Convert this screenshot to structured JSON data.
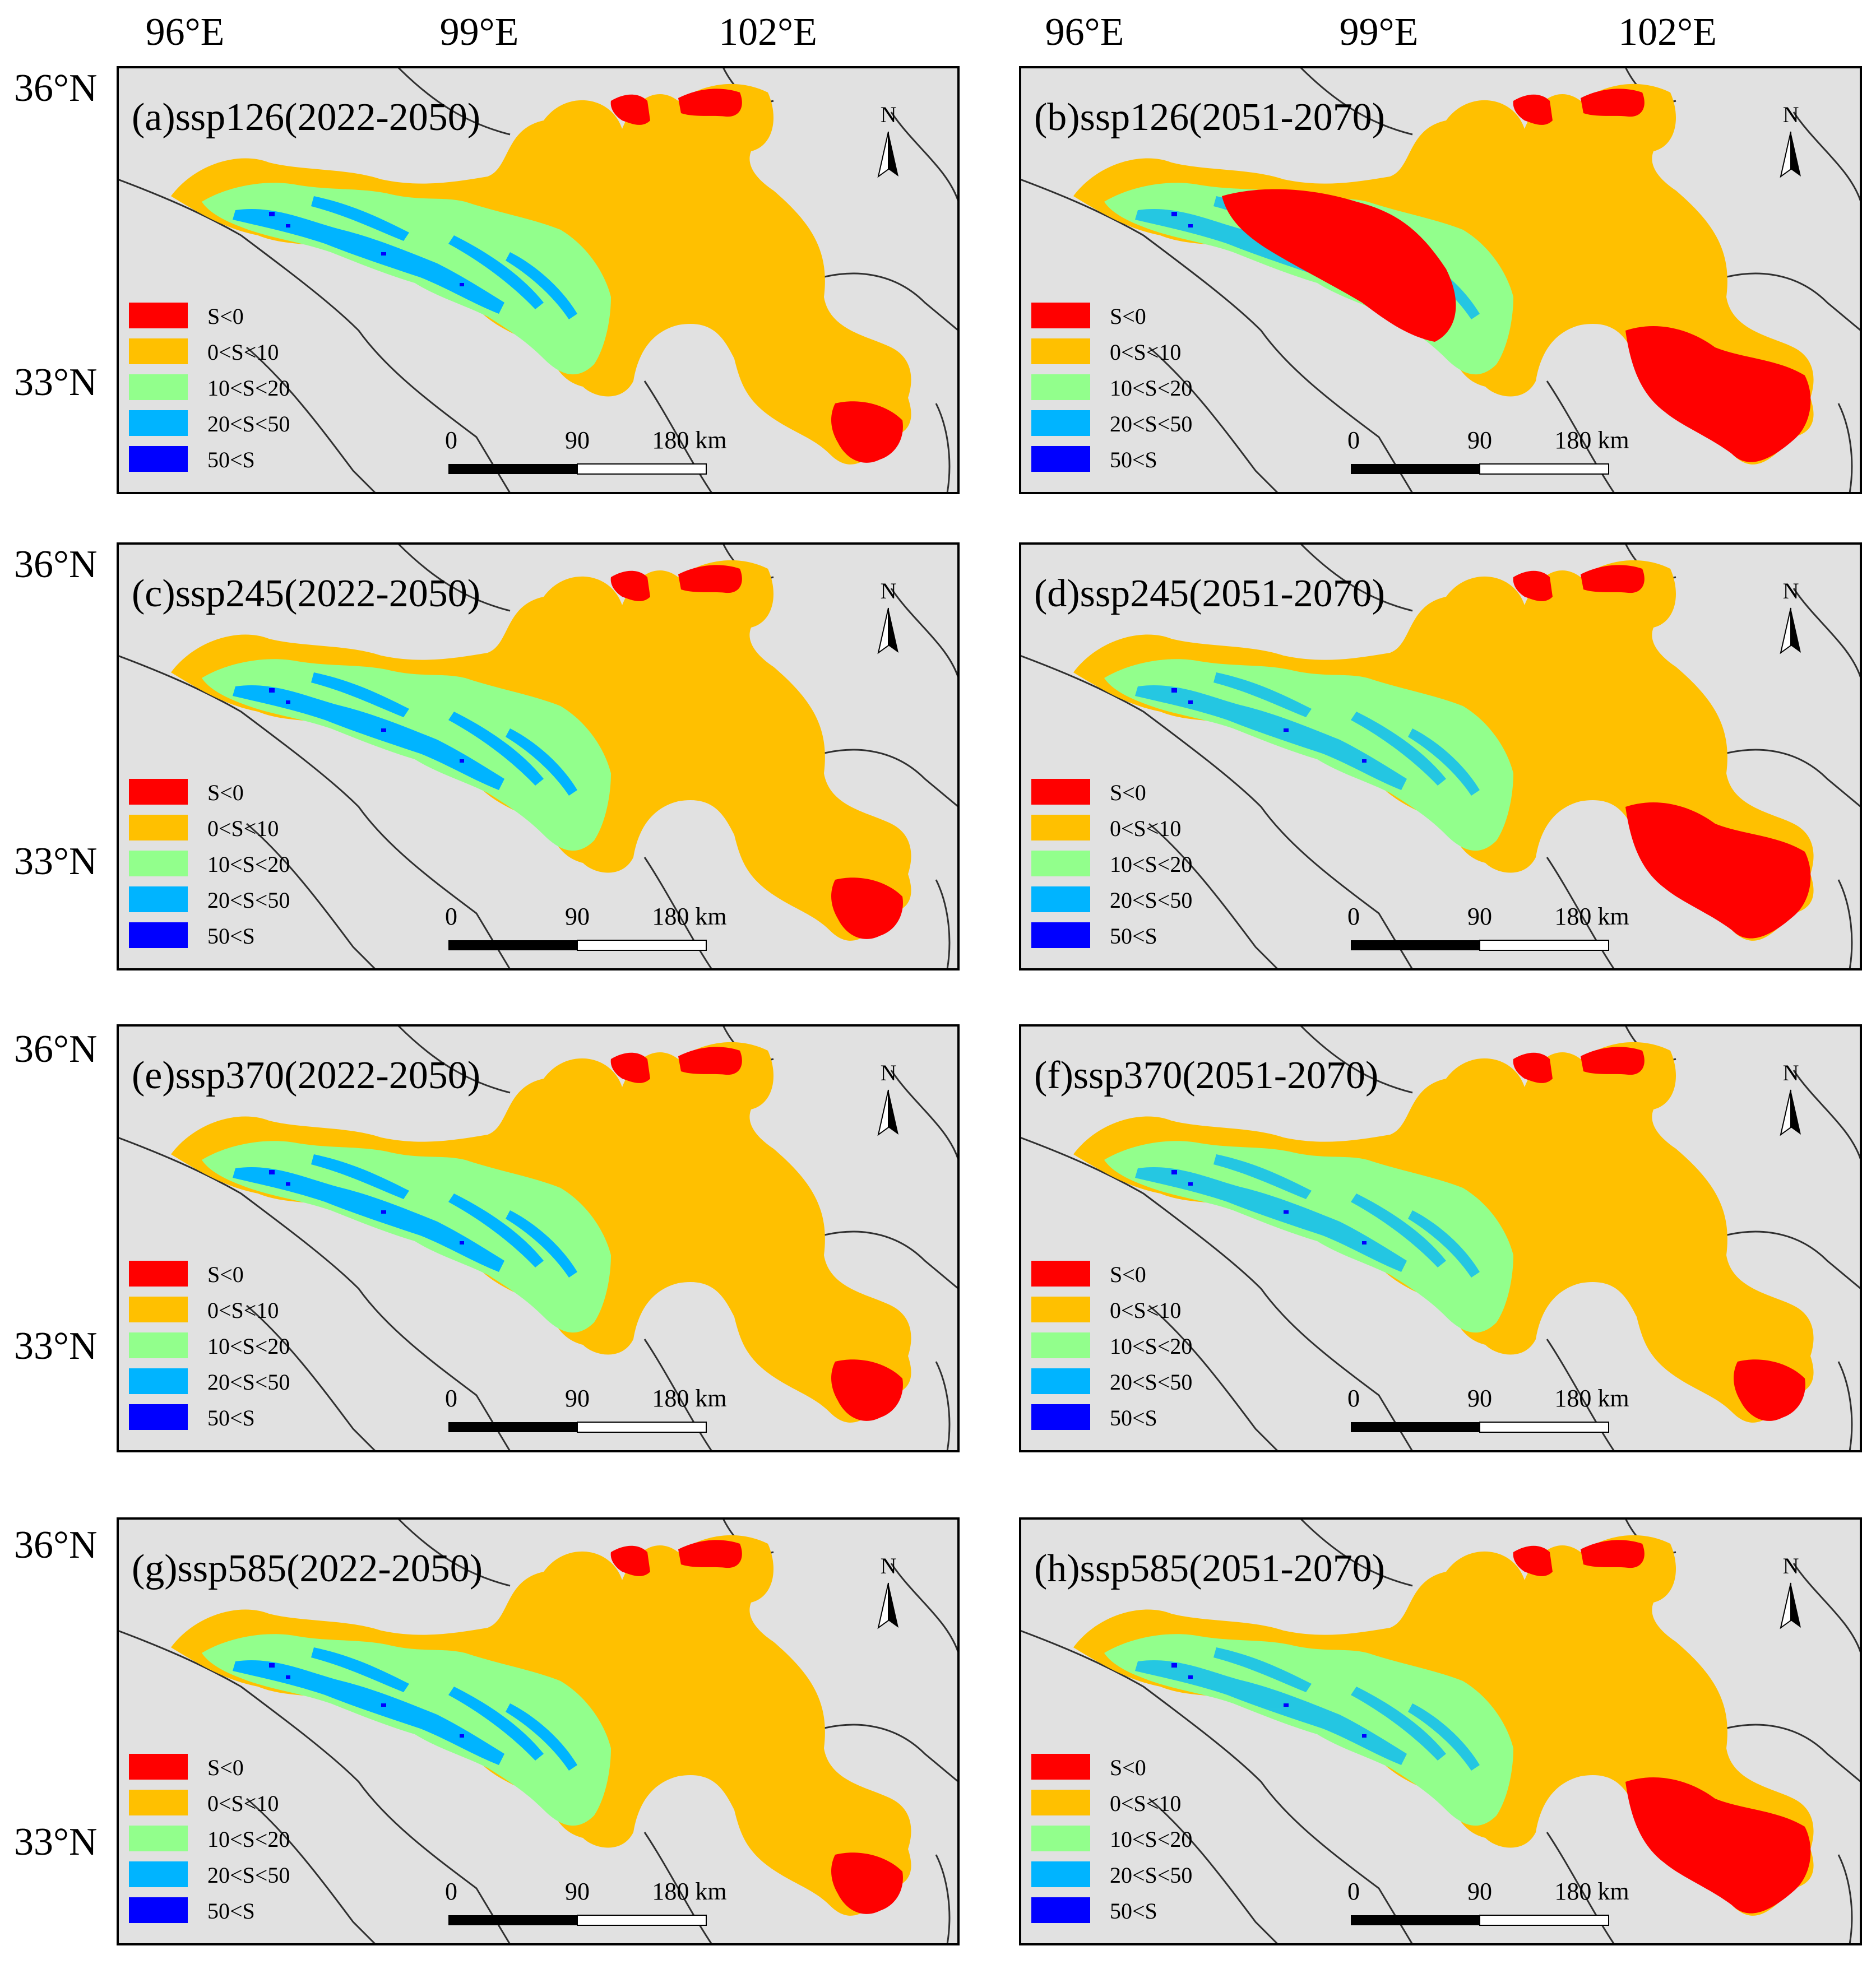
{
  "axes": {
    "lon_labels": [
      "96°E",
      "99°E",
      "102°E"
    ],
    "lat_labels": [
      "36°N",
      "33°N"
    ]
  },
  "legend": [
    {
      "label": "S<0",
      "color": "#ff0000"
    },
    {
      "label": "0<S<10",
      "color": "#ffc000"
    },
    {
      "label": "10<S<20",
      "color": "#92ff8c"
    },
    {
      "label": "20<S<50",
      "color": "#00b4ff"
    },
    {
      "label": "50<S",
      "color": "#0000ff"
    }
  ],
  "scalebar": {
    "ticks": [
      "0",
      "90",
      "180 km"
    ]
  },
  "north_arrow": {
    "label": "N",
    "icon": "north-arrow-icon"
  },
  "colors": {
    "background": "#e1e1e1",
    "boundary": "#303030"
  },
  "panels": [
    {
      "id": "a",
      "title": "(a)ssp126(2022-2050)",
      "scenario": "ssp126",
      "period": "2022-2050"
    },
    {
      "id": "b",
      "title": "(b)ssp126(2051-2070)",
      "scenario": "ssp126",
      "period": "2051-2070"
    },
    {
      "id": "c",
      "title": "(c)ssp245(2022-2050)",
      "scenario": "ssp245",
      "period": "2022-2050"
    },
    {
      "id": "d",
      "title": "(d)ssp245(2051-2070)",
      "scenario": "ssp245",
      "period": "2051-2070"
    },
    {
      "id": "e",
      "title": "(e)ssp370(2022-2050)",
      "scenario": "ssp370",
      "period": "2022-2050"
    },
    {
      "id": "f",
      "title": "(f)ssp370(2051-2070)",
      "scenario": "ssp370",
      "period": "2051-2070"
    },
    {
      "id": "g",
      "title": "(g)ssp585(2022-2050)",
      "scenario": "ssp585",
      "period": "2022-2050"
    },
    {
      "id": "h",
      "title": "(h)ssp585(2051-2070)",
      "scenario": "ssp585",
      "period": "2051-2070"
    }
  ]
}
